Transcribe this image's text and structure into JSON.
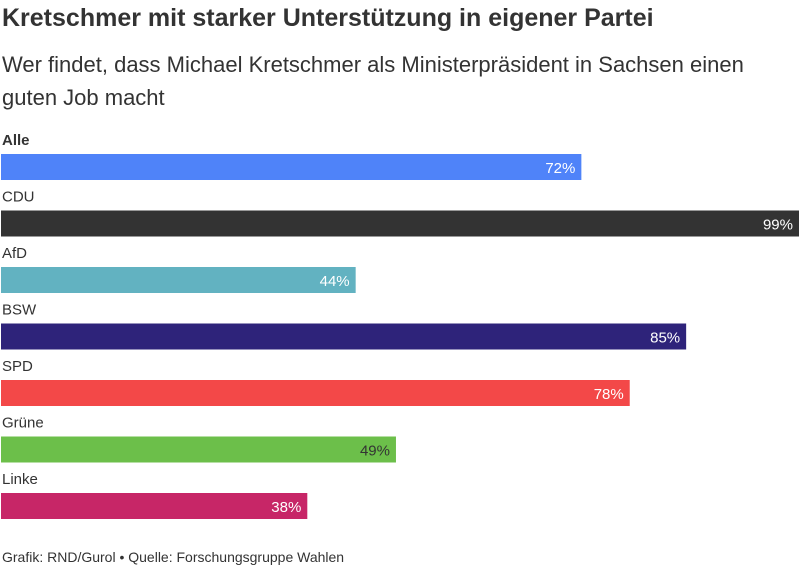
{
  "title": "Kretschmer mit starker Unterstützung in eigener Partei",
  "subtitle": "Wer findet, dass Michael Kretschmer als Ministerpräsident in Sachsen einen guten Job macht",
  "footer": "Grafik: RND/Gurol • Quelle: Forschungsgruppe Wahlen",
  "chart_data": {
    "type": "bar",
    "orientation": "horizontal",
    "categories": [
      "Alle",
      "CDU",
      "AfD",
      "BSW",
      "SPD",
      "Grüne",
      "Linke"
    ],
    "values": [
      72,
      99,
      44,
      85,
      78,
      49,
      38
    ],
    "value_labels": [
      "72%",
      "99%",
      "44%",
      "85%",
      "78%",
      "49%",
      "38%"
    ],
    "colors": [
      "#4f83f9",
      "#333333",
      "#62b2c1",
      "#2e237a",
      "#f34848",
      "#6cbf4a",
      "#c72667"
    ],
    "label_colors": [
      "#ffffff",
      "#ffffff",
      "#ffffff",
      "#ffffff",
      "#ffffff",
      "#333333",
      "#ffffff"
    ],
    "bold_categories": [
      "Alle"
    ],
    "xlim": [
      0,
      99
    ],
    "grid": false,
    "title": "",
    "xlabel": "",
    "ylabel": ""
  }
}
